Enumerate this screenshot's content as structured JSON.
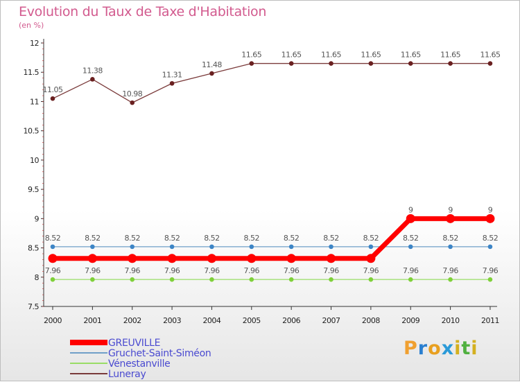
{
  "header": {
    "title": "Evolution du Taux de Taxe d'Habitation",
    "subtitle": "(en %)"
  },
  "logo": {
    "text": "Proxiti",
    "letters": [
      {
        "ch": "P",
        "color": "#f0a030"
      },
      {
        "ch": "r",
        "color": "#2a7fd0"
      },
      {
        "ch": "o",
        "color": "#e8a020"
      },
      {
        "ch": "x",
        "color": "#2a9ad8"
      },
      {
        "ch": "i",
        "color": "#d4b020"
      },
      {
        "ch": "t",
        "color": "#50b040"
      },
      {
        "ch": "i",
        "color": "#d4b020"
      }
    ]
  },
  "chart_data": {
    "type": "line",
    "title": "Evolution du Taux de Taxe d'Habitation",
    "subtitle": "(en %)",
    "x": [
      "2000",
      "2001",
      "2002",
      "2003",
      "2004",
      "2005",
      "2006",
      "2007",
      "2008",
      "2009",
      "2010",
      "2011"
    ],
    "ylim": [
      7.5,
      12
    ],
    "yticks": [
      "7.5",
      "8",
      "8.5",
      "9",
      "9.5",
      "10",
      "10.5",
      "11",
      "11.5",
      "12"
    ],
    "grid": false,
    "legend_position": "bottom-left",
    "series": [
      {
        "name": "GREUVILLE",
        "color": "#ff0000",
        "values": [
          8.32,
          8.32,
          8.32,
          8.32,
          8.32,
          8.32,
          8.32,
          8.32,
          8.32,
          9,
          9,
          9
        ],
        "labels": [
          "",
          "",
          "",
          "",
          "",
          "",
          "",
          "",
          "",
          "9",
          "9",
          "9"
        ]
      },
      {
        "name": "Gruchet-Saint-Siméon",
        "color": "#6f9fc8",
        "values": [
          8.52,
          8.52,
          8.52,
          8.52,
          8.52,
          8.52,
          8.52,
          8.52,
          8.52,
          8.52,
          8.52,
          8.52
        ],
        "labels": [
          "8.52",
          "8.52",
          "8.52",
          "8.52",
          "8.52",
          "8.52",
          "8.52",
          "8.52",
          "8.52",
          "8.52",
          "8.52",
          "8.52"
        ]
      },
      {
        "name": "Vénestanville",
        "color": "#99dd66",
        "values": [
          7.96,
          7.96,
          7.96,
          7.96,
          7.96,
          7.96,
          7.96,
          7.96,
          7.96,
          7.96,
          7.96,
          7.96
        ],
        "labels": [
          "7.96",
          "7.96",
          "7.96",
          "7.96",
          "7.96",
          "7.96",
          "7.96",
          "7.96",
          "7.96",
          "7.96",
          "7.96",
          "7.96"
        ]
      },
      {
        "name": "Luneray",
        "color": "#7a3a3a",
        "values": [
          11.05,
          11.38,
          10.98,
          11.31,
          11.48,
          11.65,
          11.65,
          11.65,
          11.65,
          11.65,
          11.65,
          11.65
        ],
        "labels": [
          "11.05",
          "11.38",
          "10.98",
          "11.31",
          "11.48",
          "11.65",
          "11.65",
          "11.65",
          "11.65",
          "11.65",
          "11.65",
          "11.65"
        ]
      }
    ]
  }
}
